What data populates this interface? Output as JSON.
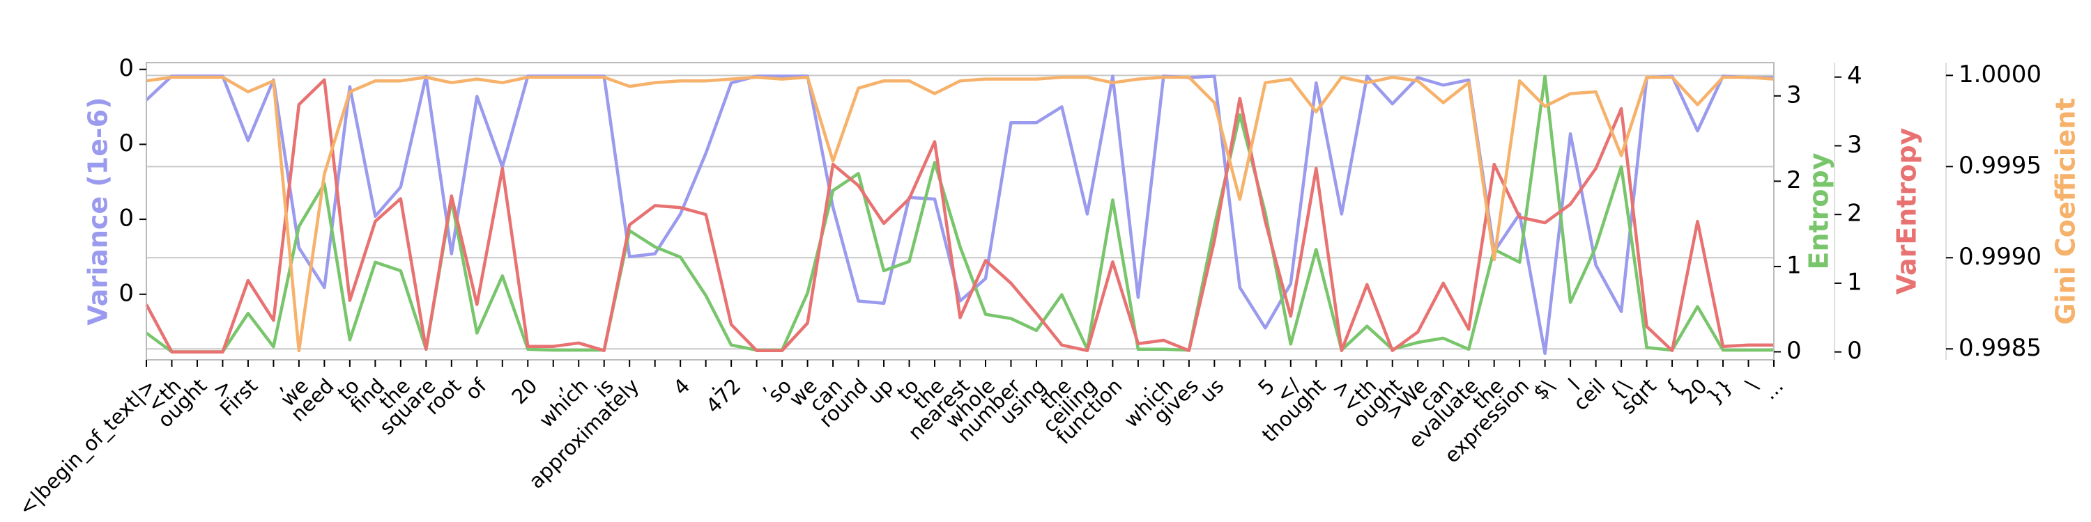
{
  "chart_data": {
    "type": "line",
    "categories": [
      "<|begin_of_text|>",
      "<th",
      "ought",
      ">",
      "First",
      ",",
      "we",
      "need",
      "to",
      "find",
      "the",
      "square",
      "root",
      "of",
      null,
      "20",
      ",",
      "which",
      "is",
      "approximately",
      null,
      "4",
      ".",
      "472",
      ",",
      "so",
      "we",
      "can",
      "round",
      "up",
      "to",
      "the",
      "nearest",
      "whole",
      "number",
      "using",
      "the",
      "ceiling",
      "function",
      ".",
      "which",
      "gives",
      "us",
      null,
      "5",
      "</",
      "thought",
      ">",
      "<th",
      "ought",
      ">We",
      "can",
      "evaluate",
      "the",
      "expression",
      "$\\",
      "l",
      "ceil",
      "{\\",
      "sqrt",
      "{",
      "20",
      "}}",
      "\\",
      "..."
    ],
    "ylabel": "Variance (1e-6)",
    "y2label": "Entropy",
    "y3label": "VarEntropy",
    "y4label": "Gini Coefficient",
    "ylim": [
      0.0125,
      0.409
    ],
    "yticks": [
      {
        "value": 0.1,
        "label": "0"
      },
      {
        "value": 0.2,
        "label": "0"
      },
      {
        "value": 0.3,
        "label": "0"
      },
      {
        "value": 0.4,
        "label": "0"
      }
    ],
    "y2lim": [
      -0.094,
      3.39
    ],
    "y2ticks": [
      0,
      1,
      2,
      3
    ],
    "y3lim": [
      -0.115,
      4.21
    ],
    "y3ticks": [
      0,
      1,
      2,
      3,
      4
    ],
    "y4lim": [
      0.99844,
      1.00007
    ],
    "y4ticks": [
      0.9985,
      {
        "value": 0.999,
        "label": "0.9990"
      },
      {
        "value": 0.9995,
        "label": "0.9995"
      },
      {
        "value": 1,
        "label": "1.0000"
      }
    ],
    "grid": true,
    "series": [
      {
        "name": "Variance (1e-6)",
        "axis": "y",
        "color": "#9a9aee",
        "values": [
          0.359,
          0.391,
          0.391,
          0.391,
          0.305,
          0.386,
          0.162,
          0.109,
          0.377,
          0.204,
          0.243,
          0.391,
          0.154,
          0.364,
          0.27,
          0.391,
          0.391,
          0.391,
          0.391,
          0.15,
          0.154,
          0.207,
          0.288,
          0.382,
          0.391,
          0.391,
          0.391,
          0.216,
          0.091,
          0.088,
          0.229,
          0.227,
          0.091,
          0.121,
          0.329,
          0.329,
          0.35,
          0.207,
          0.391,
          0.096,
          0.391,
          0.389,
          0.391,
          0.109,
          0.055,
          0.114,
          0.382,
          0.207,
          0.391,
          0.354,
          0.389,
          0.379,
          0.386,
          0.157,
          0.207,
          0.021,
          0.314,
          0.139,
          0.077,
          0.389,
          0.391,
          0.318,
          0.391,
          0.389,
          0.389
        ]
      },
      {
        "name": "Entropy",
        "axis": "y2",
        "color": "#78c56c",
        "values": [
          0.22,
          0,
          0,
          0,
          0.45,
          0.06,
          1.47,
          1.97,
          0.14,
          1.05,
          0.95,
          0.03,
          1.78,
          0.22,
          0.89,
          0.03,
          0.02,
          0.02,
          0.02,
          1.42,
          1.23,
          1.11,
          0.66,
          0.08,
          0.02,
          0.02,
          0.69,
          1.89,
          2.09,
          0.95,
          1.06,
          2.22,
          1.23,
          0.44,
          0.39,
          0.25,
          0.67,
          0.03,
          1.78,
          0.03,
          0.03,
          0.02,
          1.47,
          2.78,
          1.63,
          0.09,
          1.2,
          0.02,
          0.3,
          0.03,
          0.11,
          0.16,
          0.03,
          1.2,
          1.05,
          3.23,
          0.58,
          1.23,
          2.17,
          0.05,
          0.02,
          0.53,
          0.02,
          0.02,
          0.02
        ]
      },
      {
        "name": "VarEntropy",
        "axis": "y3",
        "color": "#e87272",
        "values": [
          0.69,
          0,
          0,
          0,
          1.04,
          0.46,
          3.6,
          3.96,
          0.75,
          1.9,
          2.23,
          0.04,
          2.27,
          0.69,
          2.67,
          0.08,
          0.08,
          0.13,
          0.02,
          1.85,
          2.13,
          2.1,
          2.0,
          0.4,
          0.02,
          0.02,
          0.42,
          2.73,
          2.42,
          1.87,
          2.23,
          3.06,
          0.5,
          1.33,
          1.0,
          0.56,
          0.1,
          0.02,
          1.31,
          0.12,
          0.17,
          0.02,
          1.62,
          3.69,
          1.9,
          0.52,
          2.67,
          0.02,
          0.98,
          0.02,
          0.29,
          1.0,
          0.33,
          2.73,
          1.96,
          1.88,
          2.15,
          2.67,
          3.54,
          0.37,
          0.02,
          1.9,
          0.08,
          0.1,
          0.1
        ]
      },
      {
        "name": "Gini Coefficient",
        "axis": "y4",
        "color": "#f6b26b",
        "values": [
          0.99997,
          0.99999,
          0.99999,
          0.99999,
          0.99991,
          0.99997,
          0.99849,
          0.99946,
          0.99991,
          0.99997,
          0.99997,
          0.99999,
          0.99996,
          0.99998,
          0.99996,
          0.99999,
          0.99999,
          0.99999,
          0.99999,
          0.99994,
          0.99996,
          0.99997,
          0.99997,
          0.99998,
          0.99999,
          0.99998,
          0.99999,
          0.99953,
          0.99993,
          0.99997,
          0.99997,
          0.9999,
          0.99997,
          0.99998,
          0.99998,
          0.99998,
          0.99999,
          0.99999,
          0.99996,
          0.99998,
          0.99999,
          0.99999,
          0.99985,
          0.99932,
          0.99996,
          0.99998,
          0.9998,
          0.99999,
          0.99996,
          0.99999,
          0.99997,
          0.99985,
          0.99996,
          0.99899,
          0.99997,
          0.99983,
          0.9999,
          0.99991,
          0.99956,
          0.99999,
          0.99999,
          0.99984,
          0.99999,
          0.99999,
          0.99998
        ]
      }
    ]
  }
}
